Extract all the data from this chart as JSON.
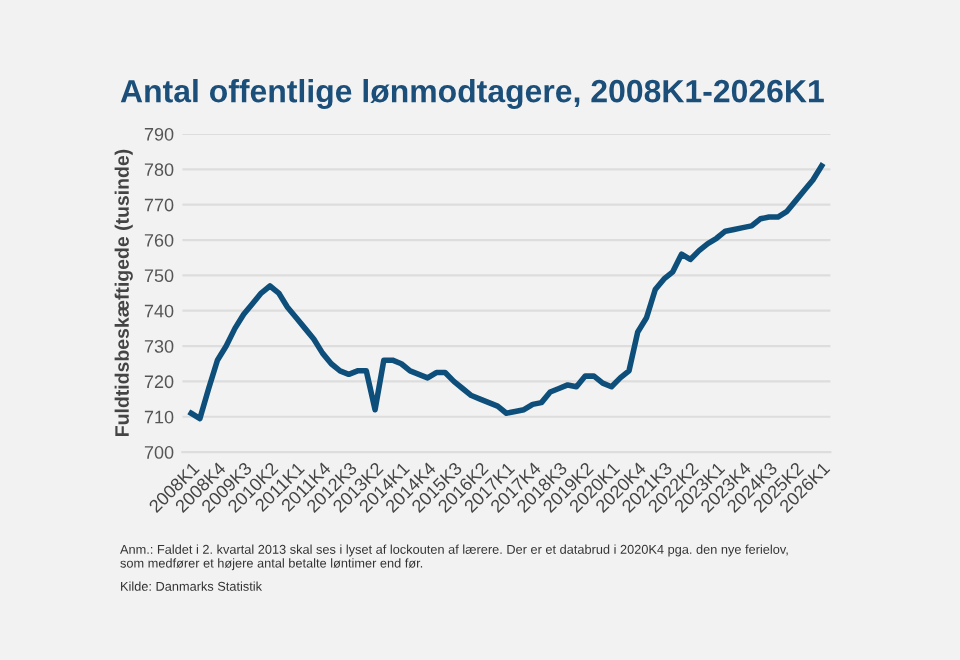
{
  "chart_data": {
    "type": "line",
    "title": "Antal offentlige lønmodtagere, 2008K1-2026K1",
    "ylabel": "Fuldtidsbeskæftigede (tusinde)",
    "categories": [
      "2008K1",
      null,
      null,
      "2008K4",
      null,
      null,
      "2009K3",
      null,
      null,
      "2010K2",
      null,
      null,
      "2011K1",
      null,
      null,
      "2011K4",
      null,
      null,
      "2012K3",
      null,
      null,
      "2013K2",
      null,
      null,
      "2014K1",
      null,
      null,
      "2014K4",
      null,
      null,
      "2015K3",
      null,
      null,
      "2016K2",
      null,
      null,
      "2017K1",
      null,
      null,
      "2017K4",
      null,
      null,
      "2018K3",
      null,
      null,
      "2019K2",
      null,
      null,
      "2020K1",
      null,
      null,
      "2020K4",
      null,
      null,
      "2021K3",
      null,
      null,
      "2022K2",
      null,
      null,
      "2023K1",
      null,
      null,
      "2023K4",
      null,
      null,
      "2024K3",
      null,
      null,
      "2025K2",
      null,
      null,
      "2026K1"
    ],
    "series": [
      {
        "color": "#0d4f7a",
        "values": [
          711,
          709.5,
          718,
          726,
          730,
          735,
          739,
          742,
          745,
          747,
          745,
          741,
          738,
          735,
          732,
          728,
          725,
          723,
          722,
          723,
          723,
          712,
          726,
          726,
          725,
          723,
          722,
          721,
          722.5,
          722.5,
          720,
          718,
          716,
          715,
          714,
          713,
          711,
          711.5,
          712,
          713.5,
          714,
          717,
          718,
          719,
          718.5,
          721.5,
          721.5,
          719.5,
          718.5,
          721,
          723,
          734,
          738,
          746,
          749,
          751,
          756,
          754.5,
          757,
          759,
          760.5,
          762.5,
          763,
          763.5,
          764,
          766,
          766.5,
          766.5,
          768,
          771,
          774,
          777,
          781
        ]
      }
    ],
    "ylim": [
      700,
      790
    ],
    "yticks": [
      700,
      710,
      720,
      730,
      740,
      750,
      760,
      770,
      780,
      790
    ],
    "grid": "y",
    "line_style": "solid",
    "marker": "none",
    "annotations": [
      "Anm.: Faldet i 2. kvartal 2013 skal ses i lyset af lockouten af lærere. Der er et databrud i 2020K4 pga. den nye ferielov,\nsom medfører et højere antal betalte løntimer end før.",
      "Kilde: Danmarks Statistik"
    ]
  }
}
